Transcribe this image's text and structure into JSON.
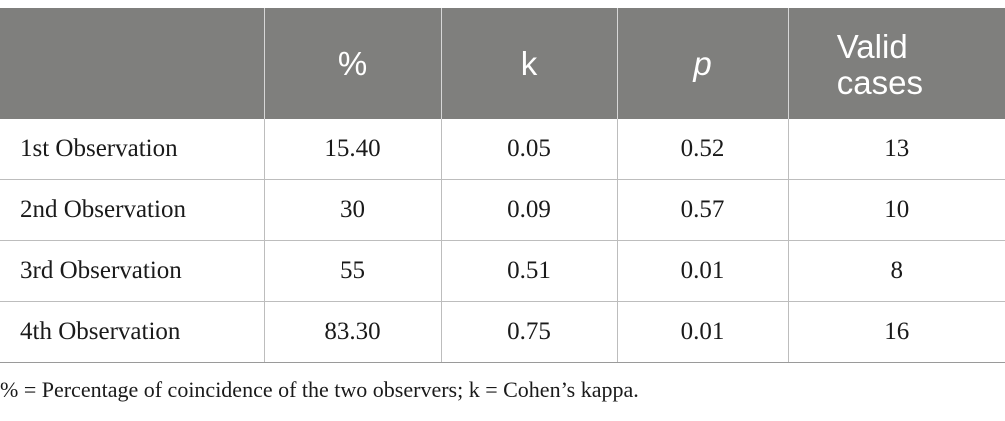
{
  "table": {
    "headers": [
      "",
      "%",
      "k",
      "p",
      "Valid cases"
    ],
    "rows": [
      [
        "1st Observation",
        "15.40",
        "0.05",
        "0.52",
        "13"
      ],
      [
        "2nd Observation",
        "30",
        "0.09",
        "0.57",
        "10"
      ],
      [
        "3rd Observation",
        "55",
        "0.51",
        "0.01",
        "8"
      ],
      [
        "4th Observation",
        "83.30",
        "0.75",
        "0.01",
        "16"
      ]
    ],
    "header_bg_color": "#7f7f7d",
    "header_text_color": "#ffffff"
  },
  "footnote": "% = Percentage of coincidence of the two observers; k = Cohen’s kappa."
}
